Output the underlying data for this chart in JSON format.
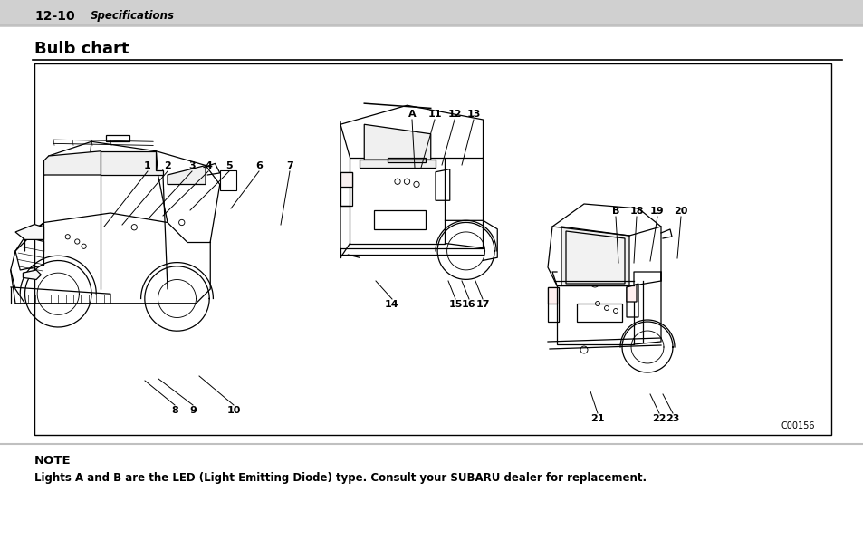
{
  "header_number": "12-10",
  "header_italic": "Specifications",
  "header_line_color": "#c8c8c8",
  "section_title": "Bulb chart",
  "box_border_color": "#000000",
  "box_bg_color": "#ffffff",
  "note_title": "NOTE",
  "note_text": "Lights A and B are the LED (Light Emitting Diode) type. Consult your SUBARU dealer for replacement.",
  "bg_color": "#ffffff",
  "code_label": "C00156",
  "watermark_color": "#e8e8e8"
}
